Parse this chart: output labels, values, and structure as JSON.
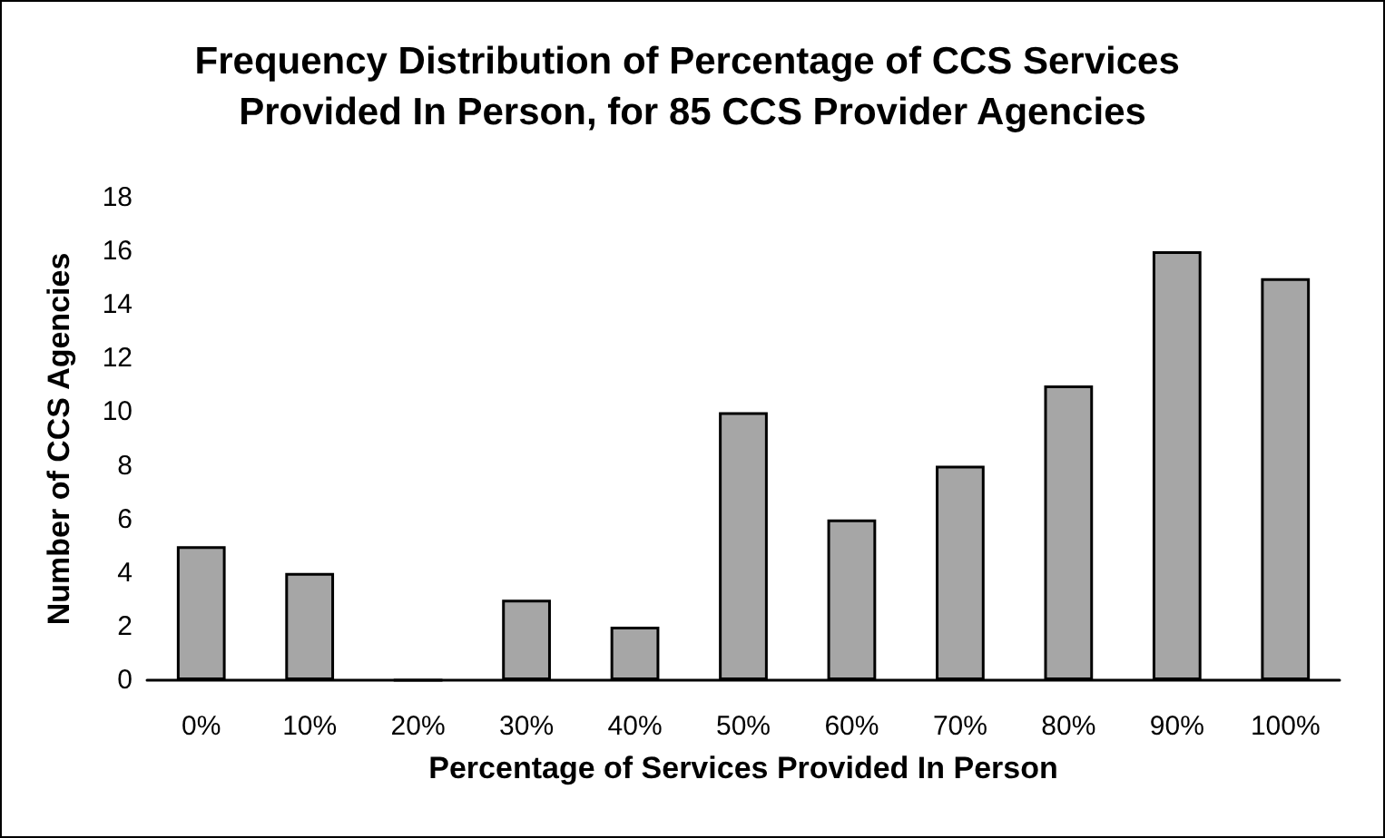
{
  "chart_data": {
    "type": "bar",
    "title": "Frequency Distribution of Percentage of CCS Services Provided In Person, for 85 CCS Provider Agencies",
    "xlabel": "Percentage of Services Provided In Person",
    "ylabel": "Number of CCS Agencies",
    "categories": [
      "0%",
      "10%",
      "20%",
      "30%",
      "40%",
      "50%",
      "60%",
      "70%",
      "80%",
      "90%",
      "100%"
    ],
    "values": [
      5,
      4,
      0,
      3,
      2,
      10,
      6,
      8,
      11,
      16,
      15
    ],
    "color": "#a6a6a6",
    "ylim": [
      0,
      18
    ],
    "yticks": [
      0,
      2,
      4,
      6,
      8,
      10,
      12,
      14,
      16,
      18
    ],
    "grid": false
  }
}
